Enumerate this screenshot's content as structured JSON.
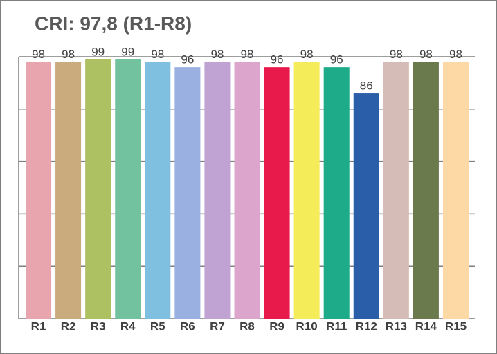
{
  "chart_data": {
    "type": "bar",
    "title": "CRI: 97,8 (R1-R8)",
    "categories": [
      "R1",
      "R2",
      "R3",
      "R4",
      "R5",
      "R6",
      "R7",
      "R8",
      "R9",
      "R10",
      "R11",
      "R12",
      "R13",
      "R14",
      "R15"
    ],
    "values": [
      98,
      98,
      99,
      99,
      98,
      96,
      98,
      98,
      96,
      98,
      96,
      86,
      98,
      98,
      98
    ],
    "colors": [
      "#e8a5ae",
      "#c9ab7e",
      "#adc062",
      "#72c29f",
      "#7fc0e0",
      "#9ab0e0",
      "#c0a3d3",
      "#dba5cc",
      "#e81a4b",
      "#f5ec5a",
      "#1dab8a",
      "#2a5ea8",
      "#d6bcb6",
      "#6a7a4d",
      "#fdd9a5"
    ],
    "ylim": [
      0,
      100
    ],
    "yticks": [
      0,
      20,
      40,
      60,
      80,
      100
    ],
    "grid": true
  }
}
